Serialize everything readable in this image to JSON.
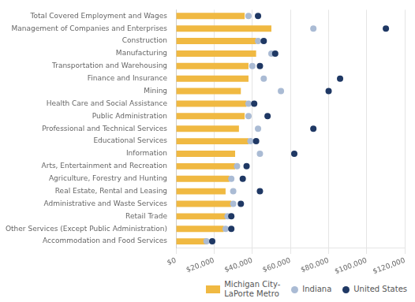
{
  "chart_data": {
    "type": "bar",
    "orientation": "horizontal",
    "categories": [
      "Total Covered Employment and Wages",
      "Management of Companies and Enterprises",
      "Construction",
      "Manufacturing",
      "Transportation and Warehousing",
      "Finance and Insurance",
      "Mining",
      "Health Care and Social Assistance",
      "Public Administration",
      "Professional and Technical Services",
      "Educational Services",
      "Information",
      "Arts, Entertainment and Recreation",
      "Agriculture, Forestry and Hunting",
      "Real Estate, Rental and Leasing",
      "Administrative and Waste Services",
      "Retail Trade",
      "Other Services (Except Public Administration)",
      "Accommodation and Food Services"
    ],
    "series": [
      {
        "name": "Michigan City-\nLaPorte Metro",
        "type": "bar",
        "color": "#F0B942",
        "values": [
          36000,
          50000,
          42000,
          42000,
          38000,
          38000,
          34000,
          37000,
          36000,
          33000,
          38000,
          31000,
          31000,
          28000,
          26000,
          29000,
          26000,
          25000,
          16000
        ]
      },
      {
        "name": "Indiana",
        "type": "scatter",
        "marker": "circle",
        "color": "#AABBD4",
        "values": [
          38000,
          72000,
          43000,
          50000,
          40000,
          46000,
          55000,
          38000,
          38000,
          43000,
          39000,
          44000,
          32000,
          29000,
          30000,
          30000,
          27000,
          26000,
          16000
        ]
      },
      {
        "name": "United States",
        "type": "scatter",
        "marker": "circle",
        "color": "#1F3864",
        "values": [
          43000,
          110000,
          46000,
          52000,
          44000,
          86000,
          80000,
          41000,
          48000,
          72000,
          42000,
          62000,
          37000,
          35000,
          44000,
          34000,
          29000,
          29000,
          19000
        ]
      }
    ],
    "xlim": [
      0,
      120000
    ],
    "xticks": [
      {
        "value": 0,
        "label": "$0"
      },
      {
        "value": 20000,
        "label": "$20,000"
      },
      {
        "value": 40000,
        "label": "$40,000"
      },
      {
        "value": 60000,
        "label": "$60,000"
      },
      {
        "value": 80000,
        "label": "$80,000"
      },
      {
        "value": 100000,
        "label": "$100,000"
      },
      {
        "value": 120000,
        "label": "$120,000"
      }
    ],
    "grid": true,
    "legend": "lower right"
  }
}
